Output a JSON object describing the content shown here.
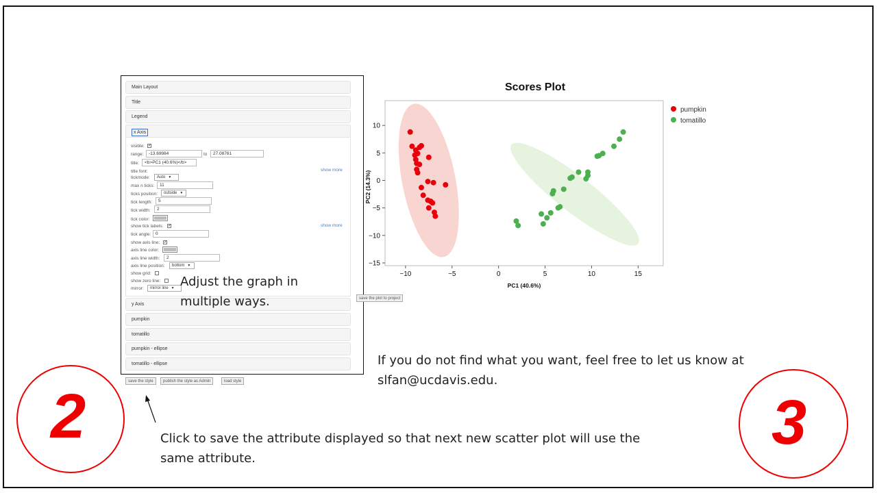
{
  "editor": {
    "sections": [
      {
        "label": "Main Layout"
      },
      {
        "label": "Title"
      },
      {
        "label": "Legend"
      },
      {
        "label": "x Axis"
      },
      {
        "label": "y Axis"
      },
      {
        "label": "pumpkin"
      },
      {
        "label": "tomatillo"
      },
      {
        "label": "pumpkin - ellipse"
      },
      {
        "label": "tomatillo - ellipse"
      }
    ],
    "x_axis": {
      "visible_label": "visible:",
      "visible": true,
      "range_label": "range:",
      "range_min": "-13.69984",
      "range_to": "to",
      "range_max": "27.08761",
      "title_label": "title:",
      "title_value": "<b>PC1 (40.6%)</b>",
      "title_font_label": "title font:",
      "show_more_1": "show more",
      "tickmode_label": "tickmode:",
      "tickmode_value": "Auto",
      "max_ticks_label": "max n ticks:",
      "max_ticks_value": "11",
      "ticks_position_label": "ticks position:",
      "ticks_position_value": "outside",
      "tick_length_label": "tick length:",
      "tick_length_value": "5",
      "tick_width_label": "tick width:",
      "tick_width_value": "2",
      "tick_color_label": "tick color:",
      "show_tick_labels_label": "show tick labels:",
      "show_tick_labels": true,
      "show_more_2": "show more",
      "tick_angle_label": "tick angle:",
      "tick_angle_value": "0",
      "show_axis_line_label": "show axis line:",
      "show_axis_line": true,
      "axis_line_color_label": "axis line color:",
      "axis_line_width_label": "axis line width:",
      "axis_line_width_value": "2",
      "axis_line_position_label": "axis line position:",
      "axis_line_position_value": "bottom",
      "show_grid_label": "show grid:",
      "show_grid": false,
      "show_zero_line_label": "show zero line:",
      "show_zero_line": false,
      "mirror_label": "mirror:",
      "mirror_value": "mirror line"
    },
    "buttons": {
      "save_style": "save the style",
      "publish_style": "publish the style as Admin",
      "load_style": "load style"
    }
  },
  "save_plot_button": "save the plot to project",
  "annotations": {
    "adjust_text_line1": "Adjust the graph in",
    "adjust_text_line2": "multiple ways.",
    "feedback_line1": "If you do not find what you want, feel free to let us know at",
    "feedback_line2": "slfan@ucdavis.edu.",
    "click_line1": "Click to save the attribute displayed so that next new scatter plot will use the",
    "click_line2": "same attribute.",
    "step_left": "2",
    "step_right": "3"
  },
  "colors": {
    "accent_red": "#e00000",
    "pumpkin": "#e8000b",
    "tomatillo": "#4caf50",
    "pumpkin_ellipse": "#f8d0cc",
    "tomatillo_ellipse": "#e2f2dc"
  },
  "chart_data": {
    "type": "scatter",
    "title": "Scores Plot",
    "xlabel": "PC1 (40.6%)",
    "ylabel": "PC2 (14.3%)",
    "xlim": [
      -12.2,
      17.7
    ],
    "ylim": [
      -15.5,
      14.5
    ],
    "xticks": [
      -10,
      -5,
      0,
      5,
      10,
      15
    ],
    "xtick_labels": [
      "−10",
      "−5",
      "0",
      "5",
      "10",
      "15"
    ],
    "yticks": [
      -15,
      -10,
      -5,
      0,
      5,
      10
    ],
    "ytick_labels": [
      "−15",
      "−10",
      "−5",
      "0",
      "5",
      "10"
    ],
    "grid": false,
    "legend_position": "top-right",
    "series": [
      {
        "name": "pumpkin",
        "color": "#e8000b",
        "ellipse": {
          "cx": -7.5,
          "cy": 0.0,
          "rx": 3.6,
          "ry": 17.0,
          "angle_deg": 11
        },
        "points": [
          [
            -9.5,
            8.8
          ],
          [
            -9.3,
            6.2
          ],
          [
            -8.9,
            5.5
          ],
          [
            -8.5,
            6.0
          ],
          [
            -8.3,
            6.3
          ],
          [
            -9.0,
            4.6
          ],
          [
            -8.7,
            4.9
          ],
          [
            -8.9,
            3.8
          ],
          [
            -8.8,
            3.1
          ],
          [
            -8.5,
            2.9
          ],
          [
            -8.8,
            2.0
          ],
          [
            -8.7,
            1.4
          ],
          [
            -7.5,
            4.2
          ],
          [
            -7.6,
            -0.2
          ],
          [
            -7.0,
            -0.4
          ],
          [
            -5.7,
            -0.8
          ],
          [
            -8.3,
            -1.3
          ],
          [
            -8.1,
            -2.7
          ],
          [
            -7.6,
            -3.6
          ],
          [
            -7.3,
            -3.8
          ],
          [
            -7.5,
            -5.0
          ],
          [
            -7.1,
            -4.1
          ],
          [
            -6.9,
            -5.8
          ],
          [
            -6.8,
            -6.5
          ]
        ]
      },
      {
        "name": "tomatillo",
        "color": "#4caf50",
        "ellipse": {
          "cx": 8.2,
          "cy": -2.5,
          "rx": 2.4,
          "ry": 17.5,
          "angle_deg": 52
        },
        "points": [
          [
            13.4,
            8.8
          ],
          [
            13.0,
            7.5
          ],
          [
            12.4,
            6.2
          ],
          [
            11.2,
            4.9
          ],
          [
            10.8,
            4.5
          ],
          [
            10.6,
            4.4
          ],
          [
            9.6,
            1.5
          ],
          [
            9.6,
            0.9
          ],
          [
            9.4,
            0.3
          ],
          [
            8.6,
            1.5
          ],
          [
            7.9,
            0.6
          ],
          [
            7.7,
            0.4
          ],
          [
            7.0,
            -1.6
          ],
          [
            5.9,
            -1.9
          ],
          [
            5.8,
            -2.4
          ],
          [
            6.6,
            -4.8
          ],
          [
            6.4,
            -5.0
          ],
          [
            5.6,
            -5.9
          ],
          [
            5.2,
            -6.8
          ],
          [
            4.6,
            -6.1
          ],
          [
            4.8,
            -7.9
          ],
          [
            1.9,
            -7.4
          ],
          [
            2.1,
            -8.2
          ]
        ]
      }
    ]
  }
}
